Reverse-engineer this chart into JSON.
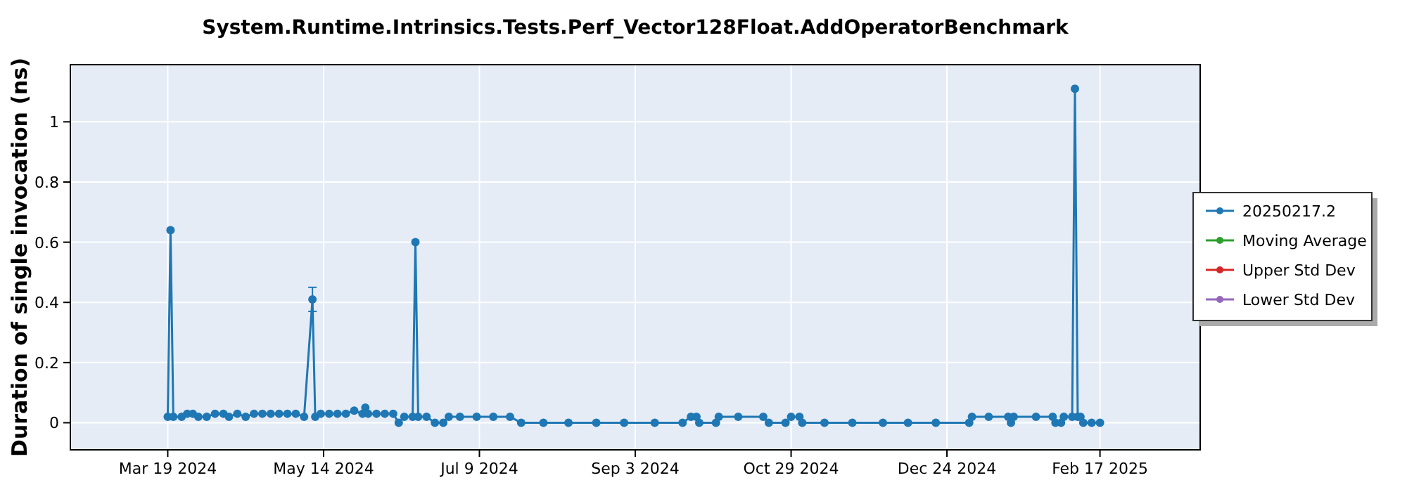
{
  "chart_data": {
    "type": "line",
    "title": "System.Runtime.Intrinsics.Tests.Perf_Vector128Float.AddOperatorBenchmark",
    "ylabel": "Duration of single invocation (ns)",
    "x": [
      "2024-03-19",
      "2024-03-20",
      "2024-03-21",
      "2024-03-24",
      "2024-03-26",
      "2024-03-28",
      "2024-03-30",
      "2024-04-02",
      "2024-04-05",
      "2024-04-08",
      "2024-04-10",
      "2024-04-13",
      "2024-04-16",
      "2024-04-19",
      "2024-04-22",
      "2024-04-25",
      "2024-04-28",
      "2024-05-01",
      "2024-05-04",
      "2024-05-07",
      "2024-05-10",
      "2024-05-11",
      "2024-05-13",
      "2024-05-16",
      "2024-05-19",
      "2024-05-22",
      "2024-05-25",
      "2024-05-28",
      "2024-05-29",
      "2024-05-30",
      "2024-06-02",
      "2024-06-05",
      "2024-06-08",
      "2024-06-10",
      "2024-06-12",
      "2024-06-15",
      "2024-06-16",
      "2024-06-17",
      "2024-06-20",
      "2024-06-23",
      "2024-06-26",
      "2024-06-28",
      "2024-07-02",
      "2024-07-08",
      "2024-07-14",
      "2024-07-20",
      "2024-07-24",
      "2024-08-01",
      "2024-08-10",
      "2024-08-20",
      "2024-08-30",
      "2024-09-10",
      "2024-09-20",
      "2024-09-23",
      "2024-09-25",
      "2024-09-26",
      "2024-10-02",
      "2024-10-03",
      "2024-10-10",
      "2024-10-19",
      "2024-10-21",
      "2024-10-27",
      "2024-10-29",
      "2024-11-01",
      "2024-11-02",
      "2024-11-10",
      "2024-11-20",
      "2024-12-01",
      "2024-12-10",
      "2024-12-20",
      "2025-01-01",
      "2025-01-02",
      "2025-01-08",
      "2025-01-15",
      "2025-01-16",
      "2025-01-17",
      "2025-01-25",
      "2025-01-31",
      "2025-02-01",
      "2025-02-03",
      "2025-02-04",
      "2025-02-07",
      "2025-02-08",
      "2025-02-09",
      "2025-02-10",
      "2025-02-11",
      "2025-02-14",
      "2025-02-17"
    ],
    "series": [
      {
        "name": "20250217.2",
        "color": "#1f77b4",
        "values": [
          0.02,
          0.64,
          0.02,
          0.02,
          0.03,
          0.03,
          0.02,
          0.02,
          0.03,
          0.03,
          0.02,
          0.03,
          0.02,
          0.03,
          0.03,
          0.03,
          0.03,
          0.03,
          0.03,
          0.02,
          0.41,
          0.02,
          0.03,
          0.03,
          0.03,
          0.03,
          0.04,
          0.03,
          0.05,
          0.03,
          0.03,
          0.03,
          0.03,
          0,
          0.02,
          0.02,
          0.6,
          0.02,
          0.02,
          0,
          0,
          0.02,
          0.02,
          0.02,
          0.02,
          0.02,
          0,
          0,
          0,
          0,
          0,
          0,
          0,
          0.02,
          0.02,
          0,
          0,
          0.02,
          0.02,
          0.02,
          0,
          0,
          0.02,
          0.02,
          0,
          0,
          0,
          0,
          0,
          0,
          0,
          0.02,
          0.02,
          0.02,
          0,
          0.02,
          0.02,
          0.02,
          0,
          0,
          0.02,
          0.02,
          1.11,
          0.02,
          0.02,
          0,
          0,
          0
        ],
        "errors": [
          null,
          null,
          null,
          null,
          null,
          null,
          null,
          null,
          null,
          null,
          null,
          null,
          null,
          null,
          null,
          null,
          null,
          null,
          null,
          null,
          [
            0.37,
            0.45
          ],
          null,
          null,
          null,
          null,
          null,
          null,
          null,
          null,
          null,
          null,
          null,
          null,
          null,
          null,
          null,
          null,
          null,
          null,
          null,
          null,
          null,
          null,
          null,
          null,
          null,
          null,
          null,
          null,
          null,
          null,
          null,
          null,
          null,
          null,
          null,
          null,
          null,
          null,
          null,
          null,
          null,
          null,
          null,
          null,
          null,
          null,
          null,
          null,
          null,
          null,
          null,
          null,
          null,
          null,
          null,
          null,
          null,
          null,
          null,
          null,
          null,
          null,
          null,
          null,
          null,
          null,
          null
        ]
      },
      {
        "name": "Moving Average",
        "color": "#2ca02c",
        "values": [
          null,
          null,
          null,
          null,
          null,
          null,
          null,
          null,
          null,
          null,
          null,
          null,
          null,
          null,
          null,
          null,
          null,
          null,
          null,
          null,
          null,
          null,
          null,
          null,
          null,
          null,
          null,
          null,
          null,
          null,
          null,
          null,
          null,
          null,
          null,
          null,
          null,
          null,
          null,
          null,
          null,
          null,
          null,
          null,
          null,
          null,
          null,
          null,
          null,
          null,
          null,
          null,
          null,
          null,
          null,
          null,
          null,
          null,
          null,
          null,
          null,
          null,
          null,
          null,
          null,
          null,
          null,
          null,
          null,
          null,
          null,
          null,
          null,
          null,
          null,
          null,
          null,
          null,
          null,
          null,
          null,
          null,
          null,
          null,
          null,
          null,
          null,
          null
        ]
      },
      {
        "name": "Upper Std Dev",
        "color": "#d62728",
        "values": [
          null,
          null,
          null,
          null,
          null,
          null,
          null,
          null,
          null,
          null,
          null,
          null,
          null,
          null,
          null,
          null,
          null,
          null,
          null,
          null,
          null,
          null,
          null,
          null,
          null,
          null,
          null,
          null,
          null,
          null,
          null,
          null,
          null,
          null,
          null,
          null,
          null,
          null,
          null,
          null,
          null,
          null,
          null,
          null,
          null,
          null,
          null,
          null,
          null,
          null,
          null,
          null,
          null,
          null,
          null,
          null,
          null,
          null,
          null,
          null,
          null,
          null,
          null,
          null,
          null,
          null,
          null,
          null,
          null,
          null,
          null,
          null,
          null,
          null,
          null,
          null,
          null,
          null,
          null,
          null,
          null,
          null,
          null,
          null,
          null,
          null,
          null,
          null
        ]
      },
      {
        "name": "Lower Std Dev",
        "color": "#9467bd",
        "values": [
          null,
          null,
          null,
          null,
          null,
          null,
          null,
          null,
          null,
          null,
          null,
          null,
          null,
          null,
          null,
          null,
          null,
          null,
          null,
          null,
          null,
          null,
          null,
          null,
          null,
          null,
          null,
          null,
          null,
          null,
          null,
          null,
          null,
          null,
          null,
          null,
          null,
          null,
          null,
          null,
          null,
          null,
          null,
          null,
          null,
          null,
          null,
          null,
          null,
          null,
          null,
          null,
          null,
          null,
          null,
          null,
          null,
          null,
          null,
          null,
          null,
          null,
          null,
          null,
          null,
          null,
          null,
          null,
          null,
          null,
          null,
          null,
          null,
          null,
          null,
          null,
          null,
          null,
          null,
          null,
          null,
          null,
          null,
          null,
          null,
          null,
          null,
          null
        ]
      }
    ],
    "xlim": [
      "2024-02-13",
      "2025-03-25"
    ],
    "xticks": [
      {
        "value": "2024-03-19",
        "label": "Mar 19 2024"
      },
      {
        "value": "2024-05-14",
        "label": "May 14 2024"
      },
      {
        "value": "2024-07-09",
        "label": "Jul 9 2024"
      },
      {
        "value": "2024-09-03",
        "label": "Sep 3 2024"
      },
      {
        "value": "2024-10-29",
        "label": "Oct 29 2024"
      },
      {
        "value": "2024-12-24",
        "label": "Dec 24 2024"
      },
      {
        "value": "2025-02-17",
        "label": "Feb 17 2025"
      }
    ],
    "ylim": [
      -0.09,
      1.19
    ],
    "yticks": [
      0,
      0.2,
      0.4,
      0.6,
      0.8,
      1
    ],
    "grid": true,
    "legend": "right",
    "marker": "circle",
    "line_style": "solid"
  }
}
